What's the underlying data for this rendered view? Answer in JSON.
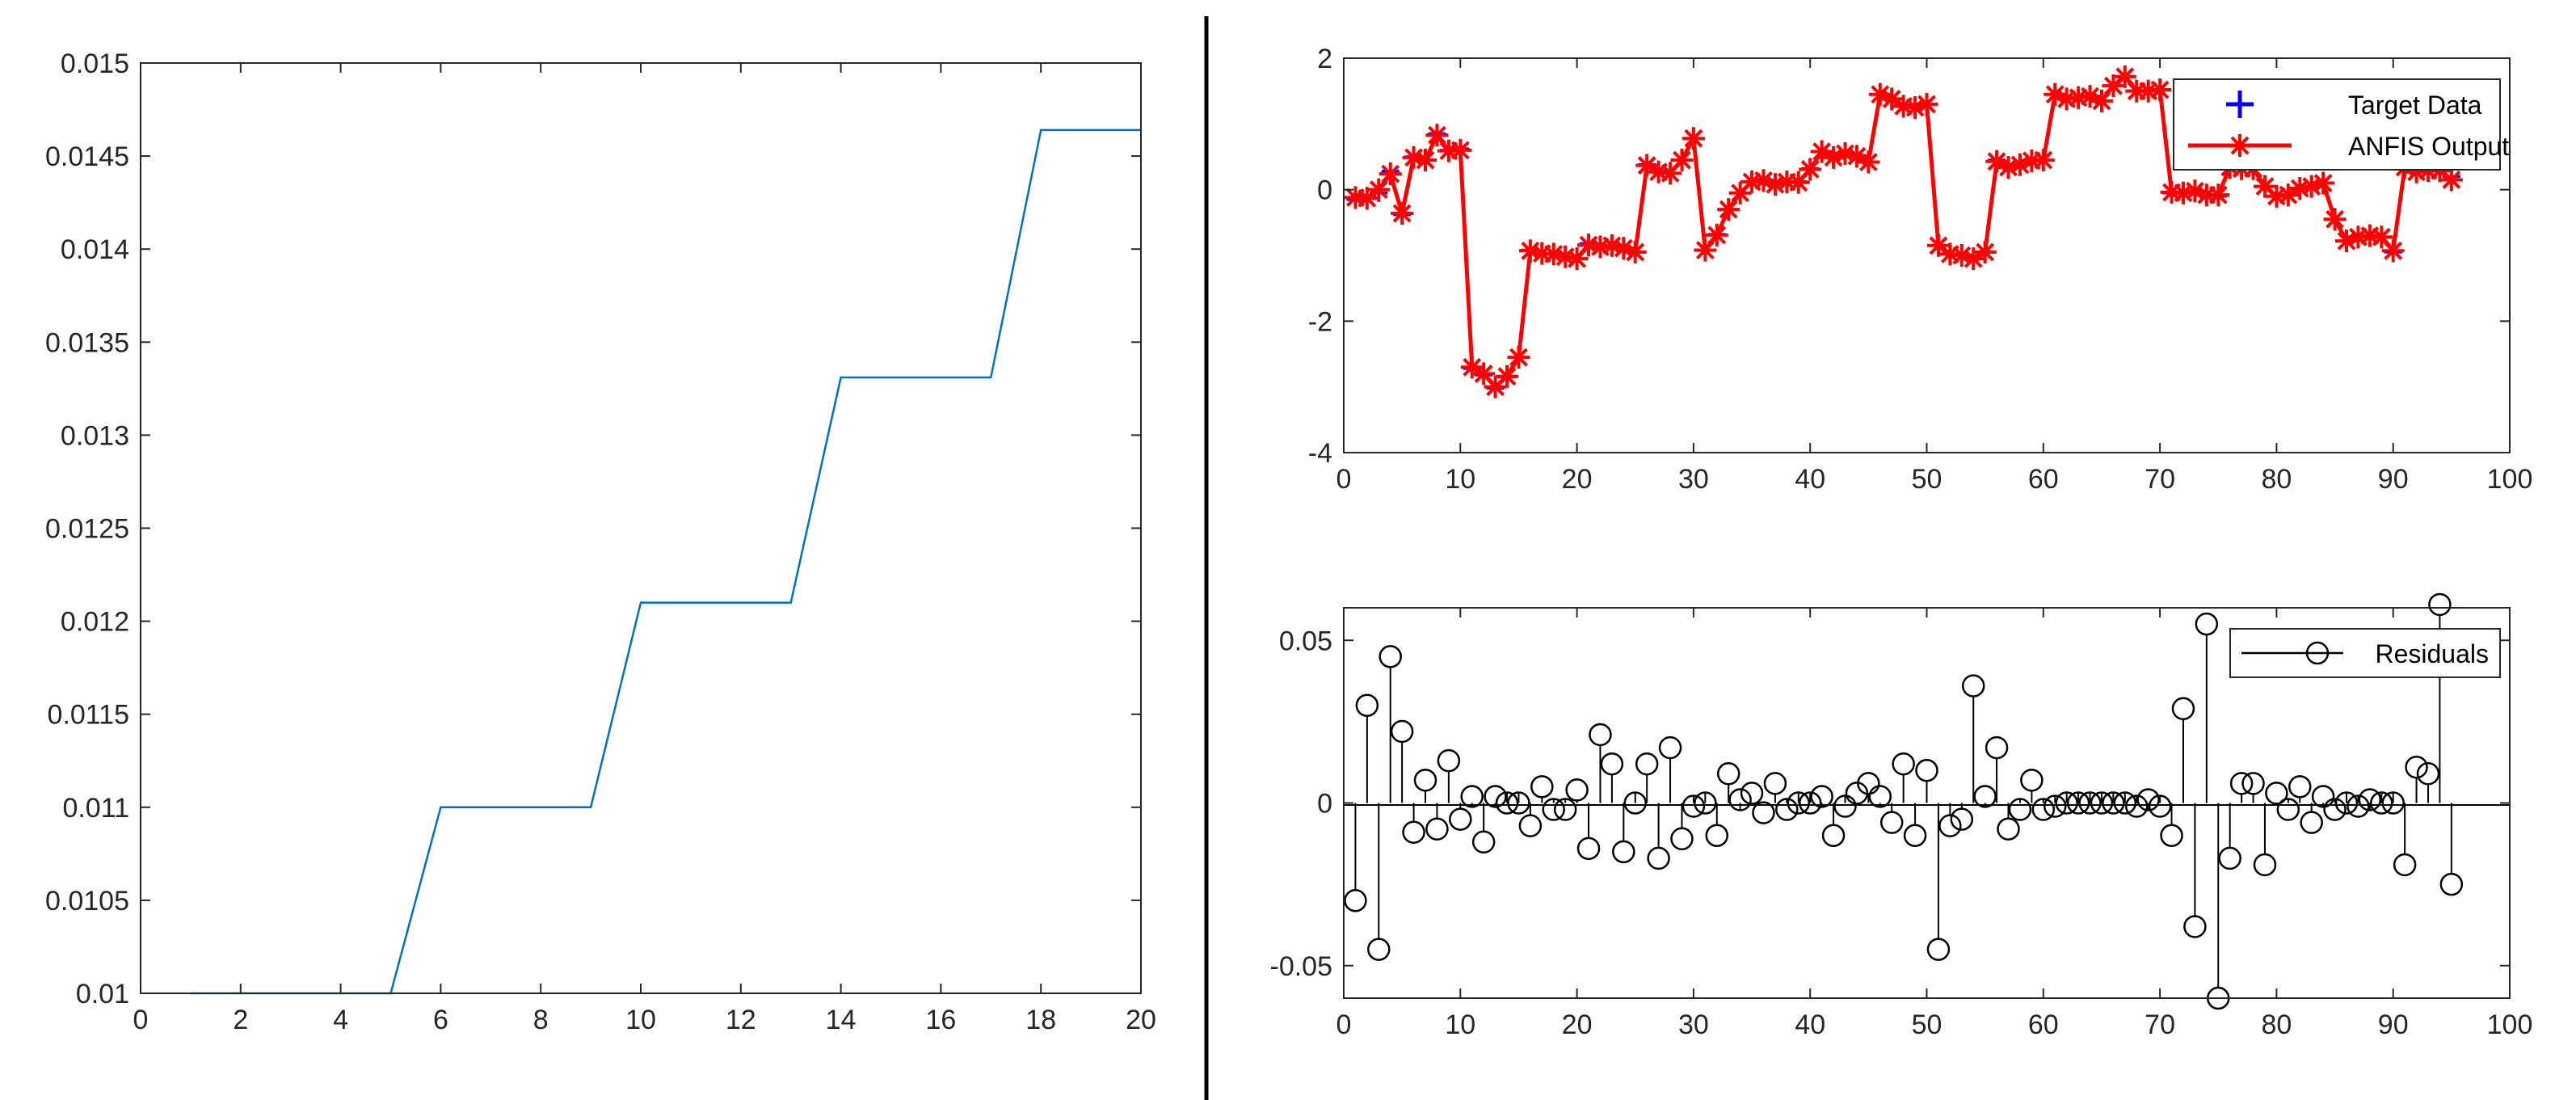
{
  "chart_data": [
    {
      "type": "line",
      "title": "",
      "xlabel": "",
      "ylabel": "",
      "xlim": [
        0,
        20
      ],
      "ylim": [
        0.01,
        0.015
      ],
      "x_ticks": [
        0,
        2,
        4,
        6,
        8,
        10,
        12,
        14,
        16,
        18,
        20
      ],
      "x_tick_labels": [
        "0",
        "2",
        "4",
        "6",
        "8",
        "10",
        "12",
        "14",
        "16",
        "18",
        "20"
      ],
      "y_ticks": [
        0.01,
        0.0105,
        0.011,
        0.0115,
        0.012,
        0.0125,
        0.013,
        0.0135,
        0.014,
        0.0145,
        0.015
      ],
      "y_tick_labels": [
        "0.01",
        "0.0105",
        "0.011",
        "0.0115",
        "0.012",
        "0.0125",
        "0.013",
        "0.0135",
        "0.014",
        "0.0145",
        "0.015"
      ],
      "grid": false,
      "series": [
        {
          "color": "#0072BD",
          "x": [
            1,
            2,
            3,
            4,
            5,
            6,
            7,
            8,
            9,
            10,
            11,
            12,
            13,
            14,
            15,
            16,
            17,
            18,
            19,
            20
          ],
          "y": [
            0.01,
            0.01,
            0.01,
            0.01,
            0.01,
            0.011,
            0.011,
            0.011,
            0.011,
            0.0121,
            0.0121,
            0.0121,
            0.0121,
            0.01331,
            0.01331,
            0.01331,
            0.01331,
            0.01464,
            0.01464,
            0.01464
          ]
        }
      ]
    },
    {
      "type": "line",
      "title": "",
      "xlabel": "",
      "ylabel": "",
      "xlim": [
        0,
        100
      ],
      "ylim": [
        -4,
        2
      ],
      "x_ticks": [
        0,
        10,
        20,
        30,
        40,
        50,
        60,
        70,
        80,
        90,
        100
      ],
      "x_tick_labels": [
        "0",
        "10",
        "20",
        "30",
        "40",
        "50",
        "60",
        "70",
        "80",
        "90",
        "100"
      ],
      "y_ticks": [
        -4,
        -2,
        0,
        2
      ],
      "y_tick_labels": [
        "-4",
        "-2",
        "0",
        "2"
      ],
      "grid": false,
      "legend_position": "top-right",
      "series": [
        {
          "name": "Target Data",
          "color": "#0000FF",
          "marker": "+",
          "x": [
            1,
            2,
            3,
            4,
            5,
            6,
            7,
            8,
            9,
            10,
            11,
            12,
            13,
            14,
            15,
            16,
            17,
            18,
            19,
            20,
            21,
            22,
            23,
            24,
            25,
            26,
            27,
            28,
            29,
            30,
            31,
            32,
            33,
            34,
            35,
            36,
            37,
            38,
            39,
            40,
            41,
            42,
            43,
            44,
            45,
            46,
            47,
            48,
            49,
            50,
            51,
            52,
            53,
            54,
            55,
            56,
            57,
            58,
            59,
            60,
            61,
            62,
            63,
            64,
            65,
            66,
            67,
            68,
            69,
            70,
            71,
            72,
            73,
            74,
            75,
            76,
            77,
            78,
            79,
            80,
            81,
            82,
            83,
            84,
            85,
            86,
            87,
            88,
            89,
            90,
            91,
            92,
            93,
            94,
            95
          ],
          "y": [
            -0.15,
            -0.1,
            -0.05,
            0.28,
            -0.38,
            0.5,
            0.45,
            0.85,
            0.6,
            0.62,
            -2.72,
            -2.82,
            -3.02,
            -2.85,
            -2.55,
            -0.92,
            -0.98,
            -0.98,
            -1.02,
            -1.05,
            -0.82,
            -0.88,
            -0.85,
            -0.9,
            -0.95,
            0.38,
            0.28,
            0.25,
            0.45,
            0.78,
            -0.92,
            -0.68,
            -0.3,
            -0.05,
            0.12,
            0.15,
            0.08,
            0.12,
            0.12,
            0.32,
            0.58,
            0.5,
            0.55,
            0.52,
            0.42,
            1.45,
            1.38,
            1.28,
            1.25,
            1.3,
            -0.85,
            -0.98,
            -1.0,
            -1.05,
            -0.95,
            0.45,
            0.35,
            0.38,
            0.45,
            0.45,
            1.45,
            1.38,
            1.4,
            1.42,
            1.35,
            1.58,
            1.72,
            1.5,
            1.5,
            1.52,
            -0.05,
            -0.05,
            -0.02,
            -0.08,
            -0.1,
            0.35,
            0.32,
            0.32,
            0.05,
            -0.1,
            -0.08,
            0.02,
            0.05,
            0.1,
            -0.45,
            -0.78,
            -0.72,
            -0.7,
            -0.72,
            -0.95,
            0.35,
            0.28,
            0.3,
            0.3,
            0.2
          ]
        },
        {
          "name": "ANFIS Output",
          "color": "#FF0000",
          "marker": "*",
          "x": [
            1,
            2,
            3,
            4,
            5,
            6,
            7,
            8,
            9,
            10,
            11,
            12,
            13,
            14,
            15,
            16,
            17,
            18,
            19,
            20,
            21,
            22,
            23,
            24,
            25,
            26,
            27,
            28,
            29,
            30,
            31,
            32,
            33,
            34,
            35,
            36,
            37,
            38,
            39,
            40,
            41,
            42,
            43,
            44,
            45,
            46,
            47,
            48,
            49,
            50,
            51,
            52,
            53,
            54,
            55,
            56,
            57,
            58,
            59,
            60,
            61,
            62,
            63,
            64,
            65,
            66,
            67,
            68,
            69,
            70,
            71,
            72,
            73,
            74,
            75,
            76,
            77,
            78,
            79,
            80,
            81,
            82,
            83,
            84,
            85,
            86,
            87,
            88,
            89,
            90,
            91,
            92,
            93,
            94,
            95
          ],
          "y": [
            -0.12,
            -0.13,
            0.0,
            0.24,
            -0.36,
            0.49,
            0.45,
            0.83,
            0.59,
            0.6,
            -2.7,
            -2.8,
            -3.0,
            -2.84,
            -2.55,
            -0.93,
            -0.97,
            -0.98,
            -1.02,
            -1.05,
            -0.84,
            -0.87,
            -0.85,
            -0.89,
            -0.95,
            0.37,
            0.27,
            0.25,
            0.45,
            0.78,
            -0.92,
            -0.69,
            -0.3,
            -0.05,
            0.12,
            0.14,
            0.08,
            0.12,
            0.11,
            0.31,
            0.58,
            0.49,
            0.55,
            0.51,
            0.42,
            1.45,
            1.38,
            1.27,
            1.25,
            1.3,
            -0.85,
            -0.98,
            -1.0,
            -1.05,
            -0.95,
            0.43,
            0.34,
            0.38,
            0.44,
            0.45,
            1.45,
            1.38,
            1.4,
            1.42,
            1.35,
            1.58,
            1.72,
            1.5,
            1.5,
            1.52,
            -0.04,
            -0.05,
            -0.02,
            -0.08,
            -0.08,
            0.34,
            0.32,
            0.32,
            0.05,
            -0.1,
            -0.08,
            0.02,
            0.05,
            0.1,
            -0.45,
            -0.78,
            -0.72,
            -0.7,
            -0.72,
            -0.93,
            0.34,
            0.27,
            0.29,
            0.29,
            0.15
          ]
        }
      ]
    },
    {
      "type": "stem",
      "title": "",
      "xlabel": "",
      "ylabel": "",
      "xlim": [
        0,
        100
      ],
      "ylim": [
        -0.06,
        0.06
      ],
      "x_ticks": [
        0,
        10,
        20,
        30,
        40,
        50,
        60,
        70,
        80,
        90,
        100
      ],
      "x_tick_labels": [
        "0",
        "10",
        "20",
        "30",
        "40",
        "50",
        "60",
        "70",
        "80",
        "90",
        "100"
      ],
      "y_ticks": [
        -0.05,
        0,
        0.05
      ],
      "y_tick_labels": [
        "-0.05",
        "0",
        "0.05"
      ],
      "grid": false,
      "legend_position": "top-right",
      "series": [
        {
          "name": "Residuals",
          "color": "#000000",
          "marker": "o",
          "x": [
            1,
            2,
            3,
            4,
            5,
            6,
            7,
            8,
            9,
            10,
            11,
            12,
            13,
            14,
            15,
            16,
            17,
            18,
            19,
            20,
            21,
            22,
            23,
            24,
            25,
            26,
            27,
            28,
            29,
            30,
            31,
            32,
            33,
            34,
            35,
            36,
            37,
            38,
            39,
            40,
            41,
            42,
            43,
            44,
            45,
            46,
            47,
            48,
            49,
            50,
            51,
            52,
            53,
            54,
            55,
            56,
            57,
            58,
            59,
            60,
            61,
            62,
            63,
            64,
            65,
            66,
            67,
            68,
            69,
            70,
            71,
            72,
            73,
            74,
            75,
            76,
            77,
            78,
            79,
            80,
            81,
            82,
            83,
            84,
            85,
            86,
            87,
            88,
            89,
            90,
            91,
            92,
            93,
            94,
            95
          ],
          "y": [
            -0.03,
            0.03,
            -0.045,
            0.045,
            0.022,
            -0.009,
            0.007,
            -0.008,
            0.013,
            -0.005,
            0.002,
            -0.012,
            0.002,
            0.0,
            0.0,
            -0.007,
            0.005,
            -0.002,
            -0.002,
            0.004,
            -0.014,
            0.021,
            0.012,
            -0.015,
            0.0,
            0.012,
            -0.017,
            0.017,
            -0.011,
            -0.001,
            0.0,
            -0.01,
            0.009,
            0.001,
            0.003,
            -0.003,
            0.006,
            -0.002,
            0.0,
            0.0,
            0.002,
            -0.01,
            -0.001,
            0.003,
            0.006,
            0.002,
            -0.006,
            0.012,
            -0.01,
            0.01,
            -0.045,
            -0.007,
            -0.005,
            0.036,
            0.002,
            0.017,
            -0.008,
            -0.002,
            0.007,
            -0.002,
            -0.001,
            0.0,
            0.0,
            0.0,
            0.0,
            0.0,
            0.0,
            -0.001,
            0.001,
            -0.001,
            -0.01,
            0.029,
            -0.038,
            0.055,
            -0.06,
            -0.017,
            0.006,
            0.006,
            -0.019,
            0.003,
            -0.002,
            0.005,
            -0.006,
            0.002,
            -0.002,
            0.0,
            -0.001,
            0.001,
            0.0,
            0.0,
            -0.019,
            0.011,
            0.009,
            0.061,
            -0.025
          ]
        }
      ]
    }
  ]
}
